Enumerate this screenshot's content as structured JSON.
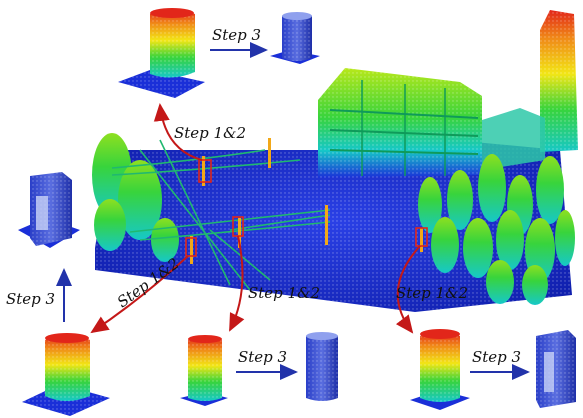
{
  "figure": {
    "labels": {
      "step3": "Step 3",
      "step12": "Step 1&2"
    }
  },
  "colors": {
    "ground": "#1a2fd8",
    "ground_deep": "#0a1a9e",
    "cyan": "#16c8c8",
    "green": "#38d43c",
    "lime": "#b8e81a",
    "yellow": "#f2e616",
    "orange": "#f08a18",
    "red": "#e2261a",
    "arrow_blue": "#2233aa",
    "arrow_red": "#c41818"
  }
}
